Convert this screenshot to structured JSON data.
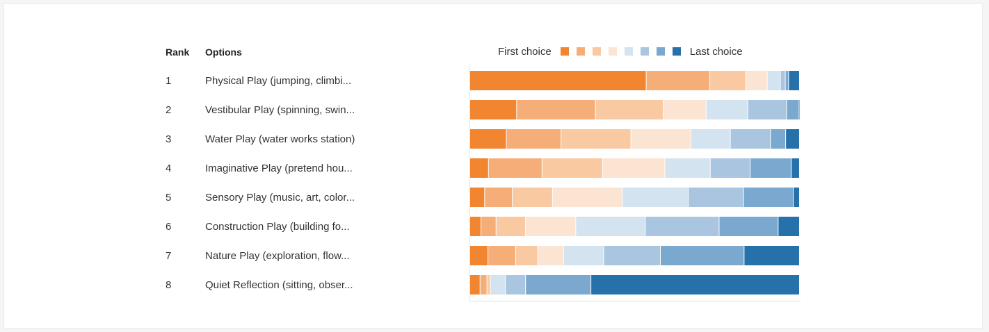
{
  "headers": {
    "rank": "Rank",
    "options": "Options"
  },
  "legend": {
    "first_label": "First choice",
    "last_label": "Last choice",
    "colors": [
      "#f28530",
      "#f6ae79",
      "#f9c9a2",
      "#fbe4d2",
      "#d3e3f0",
      "#a9c5df",
      "#7ba8cf",
      "#2771ab"
    ]
  },
  "rows": [
    {
      "rank": "1",
      "option": "Physical Play (jumping, climbi..."
    },
    {
      "rank": "2",
      "option": "Vestibular Play (spinning, swin..."
    },
    {
      "rank": "3",
      "option": "Water Play (water works station)"
    },
    {
      "rank": "4",
      "option": "Imaginative Play (pretend hou..."
    },
    {
      "rank": "5",
      "option": "Sensory Play (music, art, color..."
    },
    {
      "rank": "6",
      "option": "Construction Play (building fo..."
    },
    {
      "rank": "7",
      "option": "Nature Play (exploration, flow..."
    },
    {
      "rank": "8",
      "option": "Quiet Reflection (sitting, obser..."
    }
  ],
  "chart_data": {
    "type": "bar",
    "stacked": true,
    "orientation": "horizontal",
    "normalized": true,
    "categories": [
      "1",
      "2",
      "3",
      "4",
      "5",
      "6",
      "7",
      "8"
    ],
    "series": [
      {
        "name": "First choice",
        "values": [
          53.5,
          14.2,
          11.1,
          5.7,
          4.5,
          3.4,
          5.5,
          3.1
        ]
      },
      {
        "values": [
          19.3,
          23.9,
          16.6,
          16.4,
          8.4,
          4.6,
          8.4,
          2.1
        ]
      },
      {
        "values": [
          10.9,
          20.6,
          21.2,
          18.5,
          12.2,
          9.0,
          6.7,
          1.0
        ]
      },
      {
        "values": [
          6.5,
          13.0,
          18.2,
          19.1,
          21.2,
          15.3,
          7.8,
          0.0
        ]
      },
      {
        "values": [
          4.0,
          12.6,
          12.0,
          13.9,
          20.0,
          21.2,
          12.2,
          4.6
        ]
      },
      {
        "values": [
          1.5,
          11.8,
          12.2,
          12.2,
          16.8,
          22.5,
          17.2,
          6.1
        ]
      },
      {
        "values": [
          1.0,
          3.8,
          4.6,
          12.6,
          15.1,
          18.0,
          25.4,
          19.8
        ]
      },
      {
        "name": "Last choice",
        "values": [
          3.3,
          0.1,
          4.2,
          2.5,
          1.9,
          6.5,
          16.8,
          63.2
        ]
      }
    ],
    "xlim": [
      0,
      100
    ]
  }
}
